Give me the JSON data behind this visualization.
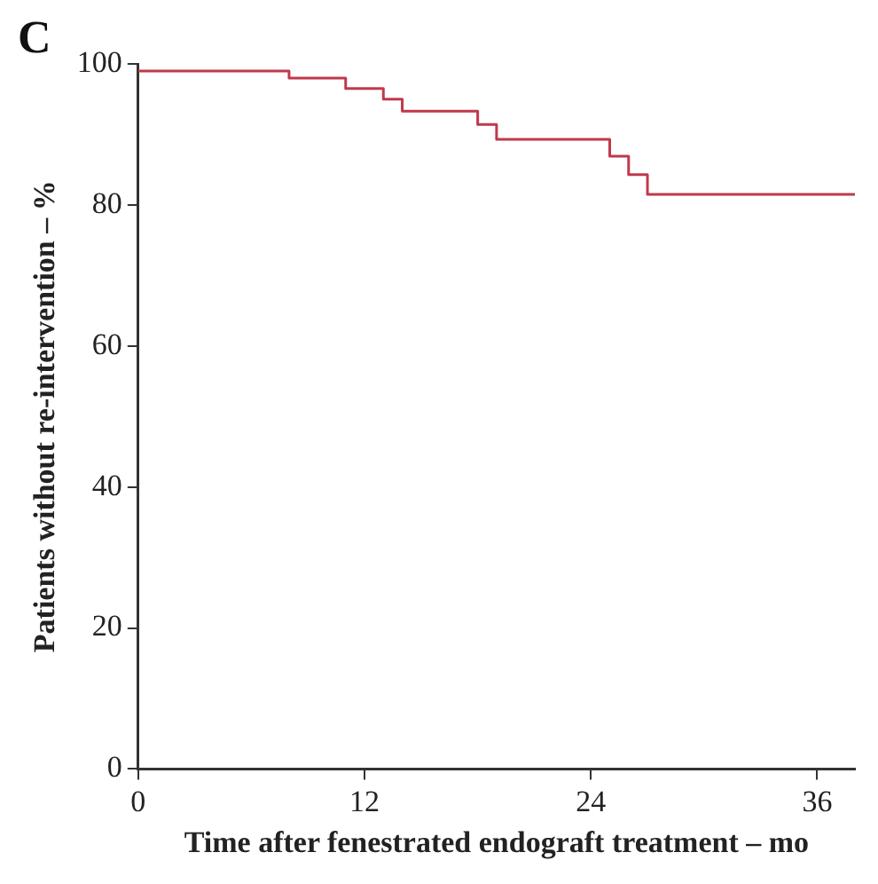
{
  "chart_data": {
    "type": "step",
    "annotations": [
      "C"
    ],
    "xlabel": "Time after fenestrated endograft treatment – mo",
    "ylabel": "Patients without re-intervention – %",
    "series": [
      {
        "color": "#c0394a",
        "x": [
          0,
          8,
          11,
          13,
          14,
          18,
          19,
          25,
          26,
          27,
          38
        ],
        "values": [
          99,
          98,
          96.5,
          95,
          93.3,
          91.4,
          89.3,
          86.9,
          84.3,
          81.5,
          81.5
        ]
      }
    ],
    "xlim": [
      0,
      38
    ],
    "xticks": [
      0,
      12,
      24,
      36
    ],
    "ylim": [
      0,
      100
    ],
    "yticks": [
      0,
      20,
      40,
      60,
      80,
      100
    ],
    "grid": false,
    "legend": false,
    "line_style": "solid",
    "marker": "none"
  }
}
